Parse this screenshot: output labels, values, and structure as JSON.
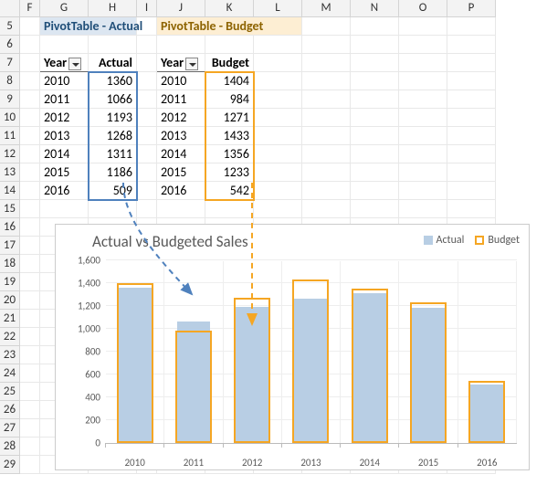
{
  "columns": {
    "letters": [
      "F",
      "G",
      "H",
      "I",
      "J",
      "K",
      "L",
      "M",
      "N",
      "O",
      "P"
    ],
    "widths": [
      22,
      53,
      53,
      22,
      53,
      53,
      53,
      53,
      53,
      53,
      53
    ]
  },
  "rows": {
    "start": 5,
    "end": 29,
    "height": 20
  },
  "pivot_actual": {
    "title": "PivotTable - Actual",
    "year_label": "Year",
    "value_label": "Actual"
  },
  "pivot_budget": {
    "title": "PivotTable - Budget",
    "year_label": "Year",
    "value_label": "Budget"
  },
  "data": {
    "years": [
      "2010",
      "2011",
      "2012",
      "2013",
      "2014",
      "2015",
      "2016"
    ],
    "actual": [
      1360,
      1066,
      1193,
      1268,
      1311,
      1186,
      509
    ],
    "budget": [
      1404,
      984,
      1271,
      1433,
      1356,
      1233,
      542
    ]
  },
  "chart": {
    "title": "Actual vs Budgeted Sales",
    "legend_actual": "Actual",
    "legend_budget": "Budget",
    "ymax": 1600,
    "ystep": 200,
    "actual_color": "#b8cee4",
    "budget_border": "#f5a623",
    "grid_color": "#eeeeee",
    "axis_color": "#bbbbbb",
    "title_fontsize": 17,
    "label_fontsize": 11
  }
}
